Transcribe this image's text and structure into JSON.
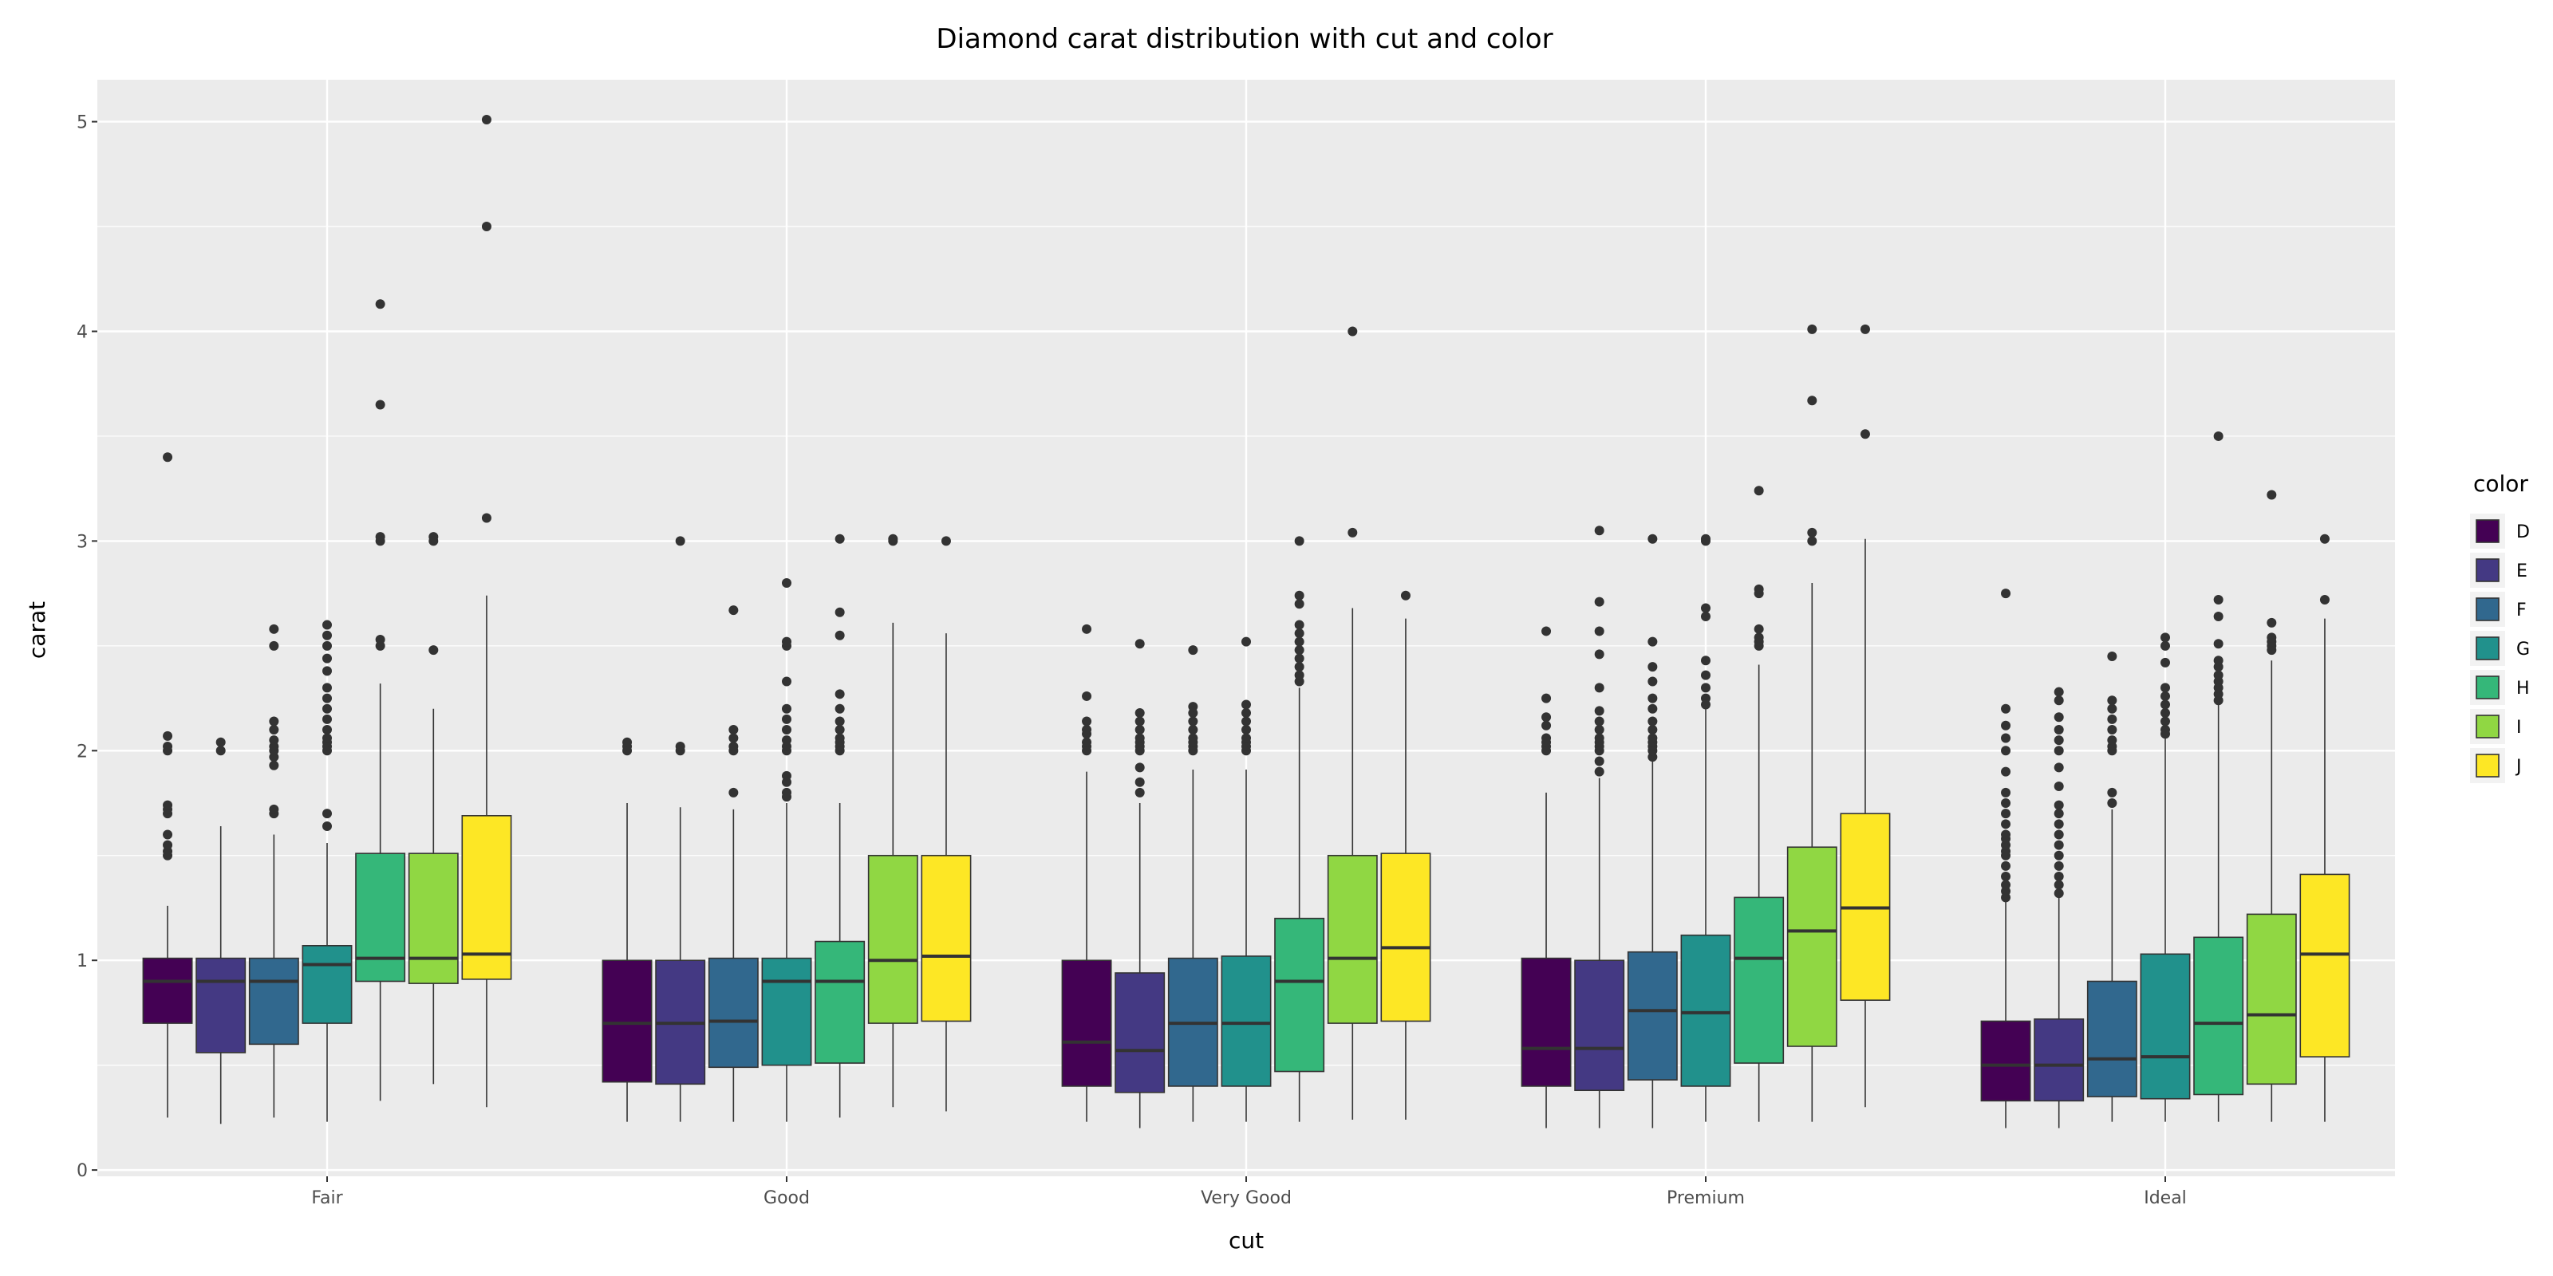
{
  "chart_data": {
    "type": "boxplot",
    "title": "Diamond carat distribution with cut and color",
    "xlabel": "cut",
    "ylabel": "carat",
    "ylim": [
      -0.03,
      5.2
    ],
    "yticks": [
      0,
      1,
      2,
      3,
      4,
      5
    ],
    "categories": [
      "Fair",
      "Good",
      "Very Good",
      "Premium",
      "Ideal"
    ],
    "grid": true,
    "legend": {
      "title": "color",
      "placement": "right",
      "entries": [
        {
          "label": "D",
          "color": "#440154"
        },
        {
          "label": "E",
          "color": "#443983"
        },
        {
          "label": "F",
          "color": "#31688e"
        },
        {
          "label": "G",
          "color": "#21918c"
        },
        {
          "label": "H",
          "color": "#35b779"
        },
        {
          "label": "I",
          "color": "#90d743"
        },
        {
          "label": "J",
          "color": "#fde725"
        }
      ]
    },
    "series": [
      {
        "name": "D",
        "color": "#440154",
        "boxes": [
          {
            "cut": "Fair",
            "whisker_low": 0.25,
            "q1": 0.7,
            "median": 0.9,
            "q3": 1.01,
            "whisker_high": 1.26,
            "outliers": [
              1.5,
              1.52,
              1.55,
              1.6,
              1.7,
              1.72,
              1.74,
              2.0,
              2.02,
              2.07,
              3.4
            ]
          },
          {
            "cut": "Good",
            "whisker_low": 0.23,
            "q1": 0.42,
            "median": 0.7,
            "q3": 1.0,
            "whisker_high": 1.75,
            "outliers": [
              2.0,
              2.02,
              2.04
            ]
          },
          {
            "cut": "Very Good",
            "whisker_low": 0.23,
            "q1": 0.4,
            "median": 0.61,
            "q3": 1.0,
            "whisker_high": 1.9,
            "outliers": [
              2.0,
              2.02,
              2.04,
              2.08,
              2.1,
              2.14,
              2.26,
              2.58
            ]
          },
          {
            "cut": "Premium",
            "whisker_low": 0.2,
            "q1": 0.4,
            "median": 0.58,
            "q3": 1.01,
            "whisker_high": 1.8,
            "outliers": [
              2.0,
              2.02,
              2.04,
              2.06,
              2.12,
              2.16,
              2.25,
              2.57
            ]
          },
          {
            "cut": "Ideal",
            "whisker_low": 0.2,
            "q1": 0.33,
            "median": 0.5,
            "q3": 0.71,
            "whisker_high": 1.28,
            "outliers": [
              1.3,
              1.33,
              1.36,
              1.4,
              1.45,
              1.5,
              1.52,
              1.55,
              1.58,
              1.6,
              1.65,
              1.7,
              1.75,
              1.8,
              1.9,
              2.0,
              2.06,
              2.12,
              2.2,
              2.75
            ]
          }
        ]
      },
      {
        "name": "E",
        "color": "#443983",
        "boxes": [
          {
            "cut": "Fair",
            "whisker_low": 0.22,
            "q1": 0.56,
            "median": 0.9,
            "q3": 1.01,
            "whisker_high": 1.64,
            "outliers": [
              2.0,
              2.04
            ]
          },
          {
            "cut": "Good",
            "whisker_low": 0.23,
            "q1": 0.41,
            "median": 0.7,
            "q3": 1.0,
            "whisker_high": 1.73,
            "outliers": [
              2.0,
              2.02,
              3.0
            ]
          },
          {
            "cut": "Very Good",
            "whisker_low": 0.2,
            "q1": 0.37,
            "median": 0.57,
            "q3": 0.94,
            "whisker_high": 1.75,
            "outliers": [
              1.8,
              1.85,
              1.92,
              2.0,
              2.02,
              2.04,
              2.06,
              2.1,
              2.14,
              2.18,
              2.51
            ]
          },
          {
            "cut": "Premium",
            "whisker_low": 0.2,
            "q1": 0.38,
            "median": 0.58,
            "q3": 1.0,
            "whisker_high": 1.87,
            "outliers": [
              1.9,
              1.95,
              2.0,
              2.02,
              2.04,
              2.06,
              2.1,
              2.14,
              2.19,
              2.3,
              2.46,
              2.57,
              2.71,
              3.05
            ]
          },
          {
            "cut": "Ideal",
            "whisker_low": 0.2,
            "q1": 0.33,
            "median": 0.5,
            "q3": 0.72,
            "whisker_high": 1.3,
            "outliers": [
              1.32,
              1.36,
              1.4,
              1.45,
              1.5,
              1.55,
              1.6,
              1.65,
              1.7,
              1.74,
              1.83,
              1.92,
              2.0,
              2.05,
              2.1,
              2.16,
              2.24,
              2.28
            ]
          }
        ]
      },
      {
        "name": "F",
        "color": "#31688e",
        "boxes": [
          {
            "cut": "Fair",
            "whisker_low": 0.25,
            "q1": 0.6,
            "median": 0.9,
            "q3": 1.01,
            "whisker_high": 1.6,
            "outliers": [
              1.7,
              1.72,
              1.93,
              1.97,
              2.0,
              2.02,
              2.05,
              2.1,
              2.14,
              2.5,
              2.58
            ]
          },
          {
            "cut": "Good",
            "whisker_low": 0.23,
            "q1": 0.49,
            "median": 0.71,
            "q3": 1.01,
            "whisker_high": 1.72,
            "outliers": [
              1.8,
              2.0,
              2.02,
              2.06,
              2.1,
              2.67
            ]
          },
          {
            "cut": "Very Good",
            "whisker_low": 0.23,
            "q1": 0.4,
            "median": 0.7,
            "q3": 1.01,
            "whisker_high": 1.91,
            "outliers": [
              2.0,
              2.02,
              2.04,
              2.06,
              2.1,
              2.14,
              2.18,
              2.21,
              2.48
            ]
          },
          {
            "cut": "Premium",
            "whisker_low": 0.2,
            "q1": 0.43,
            "median": 0.76,
            "q3": 1.04,
            "whisker_high": 1.95,
            "outliers": [
              1.97,
              2.0,
              2.02,
              2.04,
              2.06,
              2.1,
              2.14,
              2.2,
              2.25,
              2.33,
              2.4,
              2.52,
              3.01
            ]
          },
          {
            "cut": "Ideal",
            "whisker_low": 0.23,
            "q1": 0.35,
            "median": 0.53,
            "q3": 0.9,
            "whisker_high": 1.72,
            "outliers": [
              1.75,
              1.8,
              2.0,
              2.02,
              2.05,
              2.1,
              2.15,
              2.2,
              2.24,
              2.45
            ]
          }
        ]
      },
      {
        "name": "G",
        "color": "#21918c",
        "boxes": [
          {
            "cut": "Fair",
            "whisker_low": 0.23,
            "q1": 0.7,
            "median": 0.98,
            "q3": 1.07,
            "whisker_high": 1.56,
            "outliers": [
              1.64,
              1.7,
              2.0,
              2.02,
              2.04,
              2.06,
              2.1,
              2.15,
              2.2,
              2.25,
              2.3,
              2.38,
              2.44,
              2.5,
              2.55,
              2.6
            ]
          },
          {
            "cut": "Good",
            "whisker_low": 0.23,
            "q1": 0.5,
            "median": 0.9,
            "q3": 1.01,
            "whisker_high": 1.75,
            "outliers": [
              1.78,
              1.8,
              1.85,
              1.88,
              2.0,
              2.02,
              2.05,
              2.1,
              2.15,
              2.2,
              2.33,
              2.5,
              2.52,
              2.8
            ]
          },
          {
            "cut": "Very Good",
            "whisker_low": 0.23,
            "q1": 0.4,
            "median": 0.7,
            "q3": 1.02,
            "whisker_high": 1.91,
            "outliers": [
              2.0,
              2.02,
              2.04,
              2.06,
              2.1,
              2.14,
              2.18,
              2.22,
              2.52
            ]
          },
          {
            "cut": "Premium",
            "whisker_low": 0.23,
            "q1": 0.4,
            "median": 0.75,
            "q3": 1.12,
            "whisker_high": 2.2,
            "outliers": [
              2.22,
              2.25,
              2.3,
              2.36,
              2.43,
              2.64,
              2.68,
              3.0,
              3.01
            ]
          },
          {
            "cut": "Ideal",
            "whisker_low": 0.23,
            "q1": 0.34,
            "median": 0.54,
            "q3": 1.03,
            "whisker_high": 2.06,
            "outliers": [
              2.08,
              2.1,
              2.14,
              2.18,
              2.22,
              2.26,
              2.3,
              2.42,
              2.5,
              2.54
            ]
          }
        ]
      },
      {
        "name": "H",
        "color": "#35b779",
        "boxes": [
          {
            "cut": "Fair",
            "whisker_low": 0.33,
            "q1": 0.9,
            "median": 1.01,
            "q3": 1.51,
            "whisker_high": 2.32,
            "outliers": [
              2.5,
              2.53,
              3.0,
              3.02,
              3.65,
              4.13
            ]
          },
          {
            "cut": "Good",
            "whisker_low": 0.25,
            "q1": 0.51,
            "median": 0.9,
            "q3": 1.09,
            "whisker_high": 1.75,
            "outliers": [
              2.0,
              2.02,
              2.04,
              2.06,
              2.1,
              2.14,
              2.2,
              2.27,
              2.55,
              2.66,
              3.01
            ]
          },
          {
            "cut": "Very Good",
            "whisker_low": 0.23,
            "q1": 0.47,
            "median": 0.9,
            "q3": 1.2,
            "whisker_high": 2.3,
            "outliers": [
              2.33,
              2.36,
              2.4,
              2.44,
              2.48,
              2.52,
              2.56,
              2.6,
              2.7,
              2.74,
              3.0
            ]
          },
          {
            "cut": "Premium",
            "whisker_low": 0.23,
            "q1": 0.51,
            "median": 1.01,
            "q3": 1.3,
            "whisker_high": 2.41,
            "outliers": [
              2.5,
              2.52,
              2.54,
              2.58,
              2.75,
              2.77,
              3.24
            ]
          },
          {
            "cut": "Ideal",
            "whisker_low": 0.23,
            "q1": 0.36,
            "median": 0.7,
            "q3": 1.11,
            "whisker_high": 2.22,
            "outliers": [
              2.24,
              2.27,
              2.3,
              2.33,
              2.36,
              2.4,
              2.43,
              2.51,
              2.64,
              2.72,
              3.5
            ]
          }
        ]
      },
      {
        "name": "I",
        "color": "#90d743",
        "boxes": [
          {
            "cut": "Fair",
            "whisker_low": 0.41,
            "q1": 0.89,
            "median": 1.01,
            "q3": 1.51,
            "whisker_high": 2.2,
            "outliers": [
              2.48,
              3.0,
              3.02
            ]
          },
          {
            "cut": "Good",
            "whisker_low": 0.3,
            "q1": 0.7,
            "median": 1.0,
            "q3": 1.5,
            "whisker_high": 2.61,
            "outliers": [
              3.0,
              3.01
            ]
          },
          {
            "cut": "Very Good",
            "whisker_low": 0.24,
            "q1": 0.7,
            "median": 1.01,
            "q3": 1.5,
            "whisker_high": 2.68,
            "outliers": [
              3.04,
              4.0
            ]
          },
          {
            "cut": "Premium",
            "whisker_low": 0.23,
            "q1": 0.59,
            "median": 1.14,
            "q3": 1.54,
            "whisker_high": 2.8,
            "outliers": [
              3.0,
              3.04,
              3.67,
              4.01
            ]
          },
          {
            "cut": "Ideal",
            "whisker_low": 0.23,
            "q1": 0.41,
            "median": 0.74,
            "q3": 1.22,
            "whisker_high": 2.43,
            "outliers": [
              2.48,
              2.5,
              2.52,
              2.54,
              2.61,
              3.22
            ]
          }
        ]
      },
      {
        "name": "J",
        "color": "#fde725",
        "boxes": [
          {
            "cut": "Fair",
            "whisker_low": 0.3,
            "q1": 0.91,
            "median": 1.03,
            "q3": 1.69,
            "whisker_high": 2.74,
            "outliers": [
              3.11,
              4.5,
              5.01
            ]
          },
          {
            "cut": "Good",
            "whisker_low": 0.28,
            "q1": 0.71,
            "median": 1.02,
            "q3": 1.5,
            "whisker_high": 2.56,
            "outliers": [
              3.0
            ]
          },
          {
            "cut": "Very Good",
            "whisker_low": 0.24,
            "q1": 0.71,
            "median": 1.06,
            "q3": 1.51,
            "whisker_high": 2.63,
            "outliers": [
              2.74
            ]
          },
          {
            "cut": "Premium",
            "whisker_low": 0.3,
            "q1": 0.81,
            "median": 1.25,
            "q3": 1.7,
            "whisker_high": 3.01,
            "outliers": [
              3.51,
              4.01
            ]
          },
          {
            "cut": "Ideal",
            "whisker_low": 0.23,
            "q1": 0.54,
            "median": 1.03,
            "q3": 1.41,
            "whisker_high": 2.63,
            "outliers": [
              2.72,
              3.01
            ]
          }
        ]
      }
    ]
  }
}
